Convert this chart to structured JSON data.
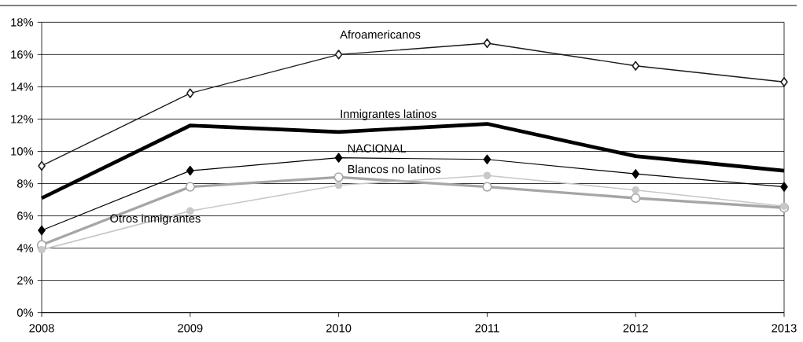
{
  "chart_data": {
    "type": "line",
    "x": [
      2008,
      2009,
      2010,
      2011,
      2012,
      2013
    ],
    "series": [
      {
        "name": "Afroamericanos",
        "color": "#1a1a1a",
        "marker": "diamond",
        "values": [
          9.1,
          13.6,
          16.0,
          16.7,
          15.3,
          14.3
        ]
      },
      {
        "name": "Inmigrantes latinos",
        "color": "#000000",
        "marker": "none",
        "values": [
          7.1,
          11.6,
          11.2,
          11.7,
          9.7,
          8.8
        ]
      },
      {
        "name": "NACIONAL",
        "color": "#000000",
        "marker": "diamond",
        "values": [
          5.1,
          8.8,
          9.6,
          9.5,
          8.6,
          7.8
        ]
      },
      {
        "name": "Blancos no latinos",
        "color": "#a6a6a6",
        "marker": "circle",
        "values": [
          4.2,
          7.8,
          8.4,
          7.8,
          7.1,
          6.5
        ]
      },
      {
        "name": "Otros inmigrantes",
        "color": "#c8c8c8",
        "marker": "circle",
        "values": [
          3.9,
          6.3,
          7.9,
          8.5,
          7.6,
          6.6
        ]
      }
    ],
    "xlim": [
      2008,
      2013
    ],
    "xticks": [
      2008,
      2009,
      2010,
      2011,
      2012,
      2013
    ],
    "ylim": [
      0,
      18
    ],
    "yticks": [
      {
        "value": 0,
        "label": "0%"
      },
      {
        "value": 2,
        "label": "2%"
      },
      {
        "value": 4,
        "label": "4%"
      },
      {
        "value": 6,
        "label": "6%"
      },
      {
        "value": 8,
        "label": "8%"
      },
      {
        "value": 10,
        "label": "10%"
      },
      {
        "value": 12,
        "label": "12%"
      },
      {
        "value": 14,
        "label": "14%"
      },
      {
        "value": 16,
        "label": "16%"
      },
      {
        "value": 18,
        "label": "18%"
      }
    ],
    "grid": "y",
    "legend": false,
    "line_style": "solid"
  }
}
